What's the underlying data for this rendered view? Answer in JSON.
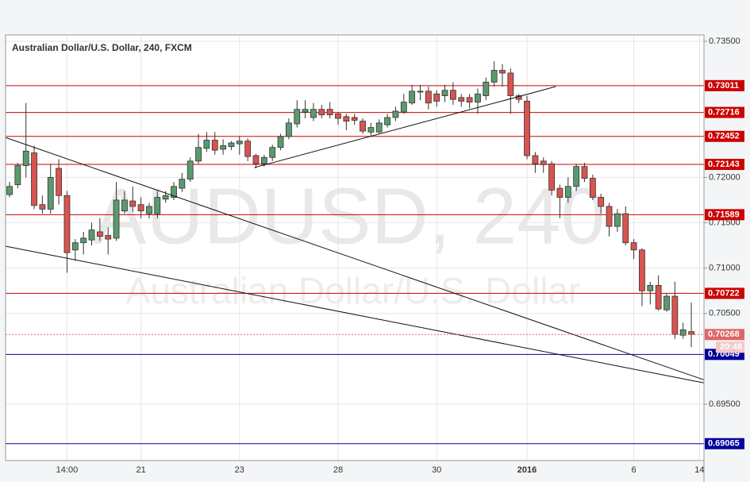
{
  "chart_data": {
    "type": "candlestick",
    "title": "Australian Dollar/U.S. Dollar, 240, FXCM",
    "watermark": {
      "symbol": "AUDUSD, 240",
      "description": "Australian Dollar/U.S. Dollar"
    },
    "categories": [
      null,
      null,
      null,
      null,
      null,
      null,
      null,
      "14:00",
      null,
      null,
      null,
      null,
      null,
      null,
      null,
      null,
      "21",
      null,
      null,
      null,
      null,
      null,
      null,
      null,
      null,
      null,
      null,
      null,
      "23",
      null,
      null,
      null,
      null,
      null,
      null,
      null,
      null,
      null,
      null,
      null,
      "28",
      null,
      null,
      null,
      null,
      null,
      null,
      null,
      null,
      null,
      null,
      null,
      "30",
      null,
      null,
      null,
      null,
      null,
      null,
      null,
      null,
      null,
      null,
      "2016",
      null,
      null,
      null,
      null,
      null,
      null,
      null,
      null,
      null,
      null,
      null,
      null,
      "6",
      null,
      null,
      null,
      null,
      null,
      null,
      null,
      "14"
    ],
    "open": [
      0.7181,
      0.7192,
      0.7213,
      0.7227,
      0.717,
      0.7165,
      0.721,
      0.718,
      0.712,
      0.7128,
      0.7131,
      0.714,
      0.7136,
      0.7133,
      0.7163,
      0.7174,
      0.717,
      0.716,
      0.716,
      0.7176,
      0.7178,
      0.7188,
      0.7198,
      0.7218,
      0.7232,
      0.7241,
      0.7231,
      0.7234,
      0.7237,
      0.724,
      0.7224,
      0.7215,
      0.7222,
      0.7233,
      0.7245,
      0.7259,
      0.7272,
      0.7266,
      0.7275,
      0.7275,
      0.727,
      0.7267,
      0.7266,
      0.7262,
      0.725,
      0.725,
      0.7258,
      0.7266,
      0.7272,
      0.7282,
      0.7294,
      0.7295,
      0.7292,
      0.729,
      0.7296,
      0.7288,
      0.7288,
      0.7283,
      0.729,
      0.7305,
      0.7318,
      0.7315,
      0.729,
      0.7284,
      0.7224,
      0.7218,
      0.7215,
      0.7188,
      0.7178,
      0.719,
      0.7212,
      0.7199,
      0.7178,
      0.7168,
      0.7146,
      0.716,
      0.7128,
      0.712,
      0.7075,
      0.7081,
      0.7054,
      0.7069,
      0.7026,
      0.703,
      null
    ],
    "high": [
      0.7195,
      0.7216,
      0.7282,
      0.7235,
      0.718,
      0.7215,
      0.722,
      0.7185,
      0.7132,
      0.714,
      0.715,
      0.7155,
      0.7145,
      0.7195,
      0.7185,
      0.719,
      0.7178,
      0.7172,
      0.7185,
      0.7185,
      0.7195,
      0.7205,
      0.7222,
      0.7248,
      0.725,
      0.725,
      0.7242,
      0.724,
      0.7245,
      0.7243,
      0.7226,
      0.7225,
      0.7236,
      0.7248,
      0.7265,
      0.7285,
      0.7285,
      0.7282,
      0.728,
      0.7283,
      0.7272,
      0.727,
      0.727,
      0.7265,
      0.726,
      0.7264,
      0.727,
      0.7278,
      0.7292,
      0.7302,
      0.7302,
      0.73,
      0.7296,
      0.7302,
      0.7305,
      0.7292,
      0.7292,
      0.7298,
      0.731,
      0.7328,
      0.7325,
      0.732,
      0.7292,
      0.729,
      0.7228,
      0.7222,
      0.7218,
      0.7192,
      0.72,
      0.7215,
      0.7216,
      0.7203,
      0.7182,
      0.7172,
      0.7165,
      0.7168,
      0.7132,
      0.7122,
      0.7085,
      0.7092,
      0.7072,
      0.7085,
      0.704,
      0.7062,
      null
    ],
    "low": [
      0.7178,
      0.7188,
      0.72,
      0.7165,
      0.716,
      0.716,
      0.717,
      0.7095,
      0.7108,
      0.7115,
      0.7125,
      0.713,
      0.7115,
      0.713,
      0.716,
      0.7162,
      0.7155,
      0.7155,
      0.7155,
      0.7172,
      0.7175,
      0.7184,
      0.7195,
      0.7215,
      0.7228,
      0.7225,
      0.7225,
      0.723,
      0.7225,
      0.7218,
      0.721,
      0.7212,
      0.7218,
      0.723,
      0.7242,
      0.7255,
      0.7265,
      0.7262,
      0.7265,
      0.7265,
      0.7258,
      0.7252,
      0.7258,
      0.7248,
      0.7246,
      0.7248,
      0.7255,
      0.7262,
      0.727,
      0.728,
      0.7285,
      0.7275,
      0.7278,
      0.7283,
      0.728,
      0.7278,
      0.7276,
      0.727,
      0.7285,
      0.73,
      0.73,
      0.727,
      0.7282,
      0.722,
      0.7205,
      0.7205,
      0.718,
      0.7155,
      0.7172,
      0.7185,
      0.7195,
      0.7175,
      0.716,
      0.7135,
      0.714,
      0.7125,
      0.711,
      0.7058,
      0.706,
      0.7053,
      0.7052,
      0.7022,
      0.7022,
      0.7013,
      null
    ],
    "close": [
      0.719,
      0.7213,
      0.7229,
      0.7169,
      0.7165,
      0.72,
      0.718,
      0.7117,
      0.7128,
      0.7133,
      0.7142,
      0.7135,
      0.7132,
      0.7175,
      0.7175,
      0.7168,
      0.7163,
      0.7168,
      0.7178,
      0.718,
      0.719,
      0.7198,
      0.7218,
      0.7233,
      0.7241,
      0.723,
      0.7235,
      0.7238,
      0.724,
      0.7223,
      0.7215,
      0.7222,
      0.7233,
      0.7245,
      0.726,
      0.7275,
      0.7275,
      0.7275,
      0.7269,
      0.7269,
      0.7265,
      0.7262,
      0.7263,
      0.7251,
      0.7255,
      0.726,
      0.7266,
      0.7273,
      0.7283,
      0.7295,
      0.7295,
      0.7282,
      0.7284,
      0.7296,
      0.7286,
      0.7284,
      0.7283,
      0.7292,
      0.7305,
      0.7318,
      0.7315,
      0.729,
      0.7286,
      0.7224,
      0.7215,
      0.7214,
      0.7186,
      0.7178,
      0.719,
      0.7212,
      0.7199,
      0.7178,
      0.7168,
      0.7146,
      0.716,
      0.7128,
      0.712,
      0.7075,
      0.7081,
      0.7055,
      0.7069,
      0.7027,
      0.7032,
      0.7027,
      null
    ],
    "up_color": "#5b9a6e",
    "down_color": "#d9534f",
    "ylim": [
      0.68879,
      0.7357
    ],
    "yticks": [
      {
        "value": 0.735,
        "label": "0.73500"
      },
      {
        "value": 0.72,
        "label": "0.72000"
      },
      {
        "value": 0.715,
        "label": "0.71500"
      },
      {
        "value": 0.71,
        "label": "0.71000"
      },
      {
        "value": 0.705,
        "label": "0.70500"
      },
      {
        "value": 0.695,
        "label": "0.69500"
      }
    ],
    "grid": true,
    "levels": [
      {
        "value": 0.73011,
        "color": "#cc0000"
      },
      {
        "value": 0.72716,
        "color": "#cc0000"
      },
      {
        "value": 0.72452,
        "color": "#cc0000"
      },
      {
        "value": 0.72143,
        "color": "#cc0000"
      },
      {
        "value": 0.71589,
        "color": "#cc0000"
      },
      {
        "value": 0.70722,
        "color": "#cc0000"
      },
      {
        "value": 0.70049,
        "color": "#000099"
      },
      {
        "value": 0.69065,
        "color": "#000099"
      }
    ],
    "price_line": {
      "value": 0.70268,
      "color": "#e06666"
    },
    "countdown": "20:48",
    "trendlines": [
      {
        "from": [
          -0.5,
          0.7244
        ],
        "to": [
          84.5,
          0.6977
        ]
      },
      {
        "from": [
          -0.5,
          0.71242
        ],
        "to": [
          84.5,
          0.69736
        ]
      },
      {
        "from": [
          29.8,
          0.72108
        ],
        "to": [
          66.5,
          0.73001
        ]
      }
    ]
  }
}
